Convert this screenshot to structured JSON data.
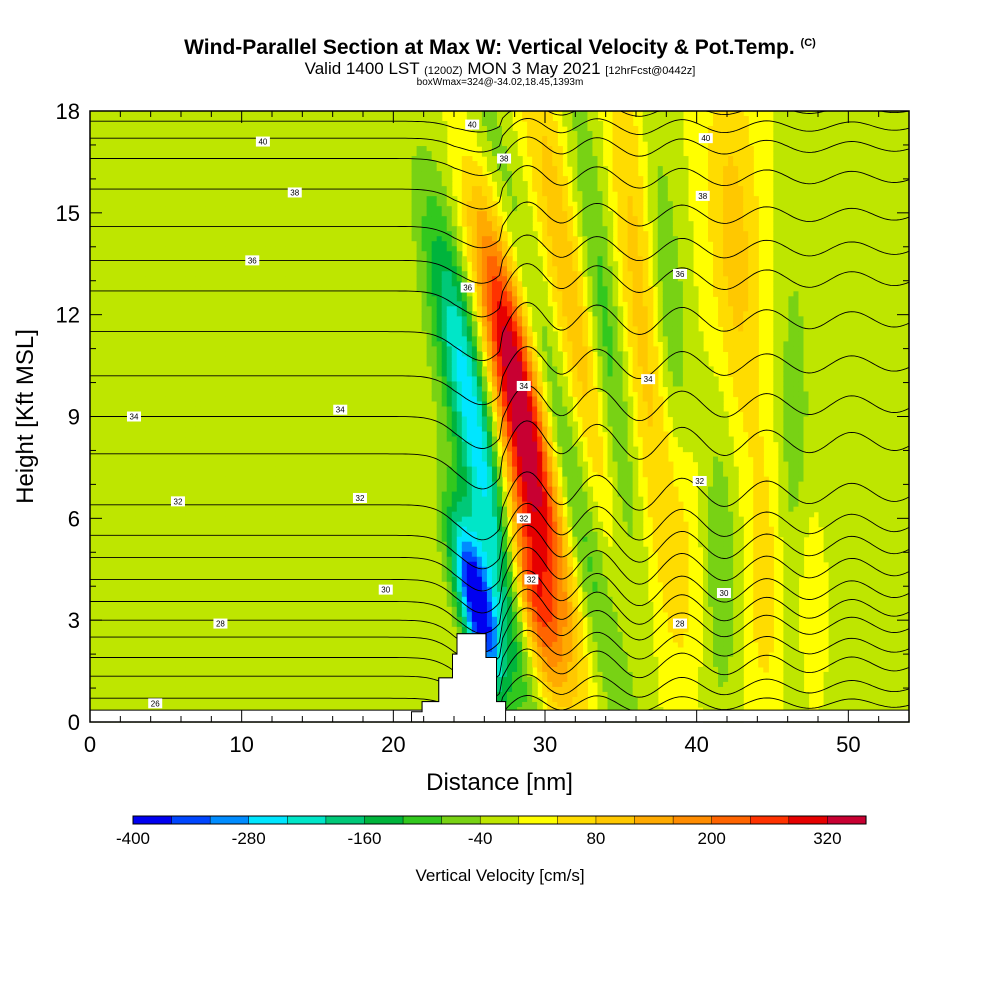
{
  "header": {
    "title_main": "Wind-Parallel Section at Max W: Vertical Velocity & Pot.Temp.",
    "title_tag": "(C)",
    "valid_prefix": "Valid 1400 LST",
    "valid_utc": "(1200Z)",
    "valid_date": "MON 3 May 2021",
    "forecast_info": "[12hrFcst@0442z]",
    "box_info": "boxWmax=324@-34.02,18.45,1393m"
  },
  "chart_data": {
    "type": "heatmap",
    "xlabel": "Distance [nm]",
    "ylabel": "Height [Kft MSL]",
    "xlim": [
      0,
      54
    ],
    "ylim": [
      0,
      18
    ],
    "x_ticks": [
      0,
      10,
      20,
      30,
      40,
      50
    ],
    "y_ticks": [
      0,
      3,
      6,
      9,
      12,
      15,
      18
    ],
    "colorbar": {
      "title": "Vertical Velocity [cm/s]",
      "levels": [
        -400,
        -360,
        -320,
        -280,
        -240,
        -200,
        -160,
        -120,
        -80,
        -40,
        0,
        40,
        80,
        120,
        160,
        200,
        240,
        280,
        320,
        360
      ],
      "labels": [
        "-400",
        "-280",
        "-160",
        "-40",
        "80",
        "200",
        "320"
      ],
      "label_values": [
        -400,
        -280,
        -160,
        -40,
        80,
        200,
        320
      ],
      "colors": [
        "#0000f0",
        "#0046ff",
        "#008cff",
        "#00e6ff",
        "#00e6c8",
        "#00c878",
        "#00b43c",
        "#32c81e",
        "#78d214",
        "#bee600",
        "#ffff00",
        "#ffdc00",
        "#ffc800",
        "#ffaa00",
        "#ff8c00",
        "#ff6400",
        "#ff3200",
        "#e60000",
        "#c80032"
      ]
    },
    "terrain": {
      "x": [
        21.2,
        21.2,
        21.9,
        21.9,
        23.0,
        23.0,
        23.9,
        23.9,
        24.2,
        24.2,
        26.1,
        26.1,
        26.8,
        26.8,
        27.4,
        27.4
      ],
      "y": [
        0.0,
        0.3,
        0.3,
        0.6,
        0.6,
        1.3,
        1.3,
        2.0,
        2.0,
        2.6,
        2.6,
        1.9,
        1.9,
        0.6,
        0.6,
        0.0
      ]
    },
    "w_features": [
      {
        "x": 25.5,
        "y": 3.5,
        "sx": 0.8,
        "sy": 1.8,
        "w": -420,
        "tilt": 0.45
      },
      {
        "x": 26.0,
        "y": 7.0,
        "sx": 1.0,
        "sy": 4.5,
        "w": -230,
        "tilt": 0.45
      },
      {
        "x": 25.0,
        "y": 11.0,
        "sx": 1.0,
        "sy": 3.0,
        "w": -110,
        "tilt": 0.45
      },
      {
        "x": 28.8,
        "y": 8.0,
        "sx": 1.3,
        "sy": 4.0,
        "w": 330,
        "tilt": 0.45
      },
      {
        "x": 27.8,
        "y": 12.0,
        "sx": 1.1,
        "sy": 3.0,
        "w": 160,
        "tilt": 0.45
      },
      {
        "x": 29.2,
        "y": 3.5,
        "sx": 0.9,
        "sy": 2.0,
        "w": 200,
        "tilt": 0.45
      },
      {
        "x": 30.5,
        "y": 9.0,
        "sx": 1.0,
        "sy": 7.0,
        "w": -150,
        "tilt": 0.5
      },
      {
        "x": 32.0,
        "y": 12.0,
        "sx": 1.0,
        "sy": 6.0,
        "w": 120,
        "tilt": 0.4
      },
      {
        "x": 34.3,
        "y": 10.0,
        "sx": 0.9,
        "sy": 6.0,
        "w": -120,
        "tilt": 0.25
      },
      {
        "x": 36.5,
        "y": 12.0,
        "sx": 1.1,
        "sy": 6.0,
        "w": 110,
        "tilt": 0.2
      },
      {
        "x": 38.3,
        "y": 11.0,
        "sx": 0.9,
        "sy": 5.0,
        "w": -110,
        "tilt": 0.2
      },
      {
        "x": 39.5,
        "y": 6.0,
        "sx": 1.0,
        "sy": 3.0,
        "w": 90,
        "tilt": 0.1
      },
      {
        "x": 41.5,
        "y": 5.0,
        "sx": 1.0,
        "sy": 3.5,
        "w": -80,
        "tilt": 0.05
      },
      {
        "x": 42.5,
        "y": 14.0,
        "sx": 1.2,
        "sy": 4.0,
        "w": 100,
        "tilt": 0.1
      },
      {
        "x": 44.5,
        "y": 4.0,
        "sx": 1.0,
        "sy": 3.0,
        "w": 60,
        "tilt": 0.0
      },
      {
        "x": 46.3,
        "y": 8.0,
        "sx": 0.8,
        "sy": 5.0,
        "w": -60,
        "tilt": 0.0
      },
      {
        "x": 47.5,
        "y": 4.0,
        "sx": 0.8,
        "sy": 2.0,
        "w": 50,
        "tilt": 0.0
      },
      {
        "x": 49.0,
        "y": 9.0,
        "sx": 1.3,
        "sy": 5.0,
        "w": -30,
        "tilt": 0.0
      },
      {
        "x": 23.0,
        "y": 10.0,
        "sx": 1.6,
        "sy": 8.0,
        "w": -20,
        "tilt": 0.0
      },
      {
        "x": 10.5,
        "y": 4.8,
        "sx": 2.0,
        "sy": 1.0,
        "w": -35,
        "tilt": 0.0
      },
      {
        "x": 18.2,
        "y": 3.9,
        "sx": 1.2,
        "sy": 1.5,
        "w": -35,
        "tilt": 0.0
      },
      {
        "x": 0.0,
        "y": 2.0,
        "sx": 4.0,
        "sy": 1.2,
        "w": -40,
        "tilt": 0.0
      },
      {
        "x": 15.0,
        "y": 0.5,
        "sx": 3.0,
        "sy": 0.6,
        "w": -30,
        "tilt": 0.0
      }
    ],
    "theta_levels": [
      {
        "base": 0.2,
        "wave": 0.6
      },
      {
        "base": 0.7,
        "wave": 0.8
      },
      {
        "base": 1.35,
        "wave": 1.0
      },
      {
        "base": 1.9,
        "wave": 1.0
      },
      {
        "base": 2.5,
        "wave": 1.1
      },
      {
        "base": 3.0,
        "wave": 1.2
      },
      {
        "base": 3.55,
        "wave": 1.2
      },
      {
        "base": 4.2,
        "wave": 1.25
      },
      {
        "base": 4.85,
        "wave": 1.25
      },
      {
        "base": 5.5,
        "wave": 1.25
      },
      {
        "base": 6.4,
        "wave": 1.3
      },
      {
        "base": 7.9,
        "wave": 1.3
      },
      {
        "base": 9.0,
        "wave": 1.2
      },
      {
        "base": 10.2,
        "wave": 1.1
      },
      {
        "base": 11.5,
        "wave": 1.1
      },
      {
        "base": 12.7,
        "wave": 1.0
      },
      {
        "base": 13.6,
        "wave": 0.9
      },
      {
        "base": 14.6,
        "wave": 0.85
      },
      {
        "base": 15.7,
        "wave": 0.8
      },
      {
        "base": 16.6,
        "wave": 0.7
      },
      {
        "base": 17.2,
        "wave": 0.6
      },
      {
        "base": 17.7,
        "wave": 0.5
      }
    ],
    "contour_labels": [
      {
        "text": "26",
        "x": 4.3,
        "y": 0.55
      },
      {
        "text": "28",
        "x": 8.6,
        "y": 2.9
      },
      {
        "text": "30",
        "x": 19.5,
        "y": 3.9
      },
      {
        "text": "32",
        "x": 5.8,
        "y": 6.5
      },
      {
        "text": "32",
        "x": 17.8,
        "y": 6.6
      },
      {
        "text": "34",
        "x": 2.9,
        "y": 9.0
      },
      {
        "text": "34",
        "x": 16.5,
        "y": 9.2
      },
      {
        "text": "36",
        "x": 10.7,
        "y": 13.6
      },
      {
        "text": "38",
        "x": 13.5,
        "y": 15.6
      },
      {
        "text": "40",
        "x": 11.4,
        "y": 17.1
      },
      {
        "text": "40",
        "x": 25.2,
        "y": 17.6
      },
      {
        "text": "38",
        "x": 27.3,
        "y": 16.6
      },
      {
        "text": "36",
        "x": 24.9,
        "y": 12.8
      },
      {
        "text": "34",
        "x": 28.6,
        "y": 9.9
      },
      {
        "text": "32",
        "x": 28.6,
        "y": 6.0
      },
      {
        "text": "32",
        "x": 29.1,
        "y": 4.2
      },
      {
        "text": "34",
        "x": 36.8,
        "y": 10.1
      },
      {
        "text": "32",
        "x": 40.2,
        "y": 7.1
      },
      {
        "text": "30",
        "x": 41.8,
        "y": 3.8
      },
      {
        "text": "28",
        "x": 38.9,
        "y": 2.9
      },
      {
        "text": "36",
        "x": 38.9,
        "y": 13.2
      },
      {
        "text": "38",
        "x": 40.4,
        "y": 15.5
      },
      {
        "text": "40",
        "x": 40.6,
        "y": 17.2
      }
    ]
  }
}
